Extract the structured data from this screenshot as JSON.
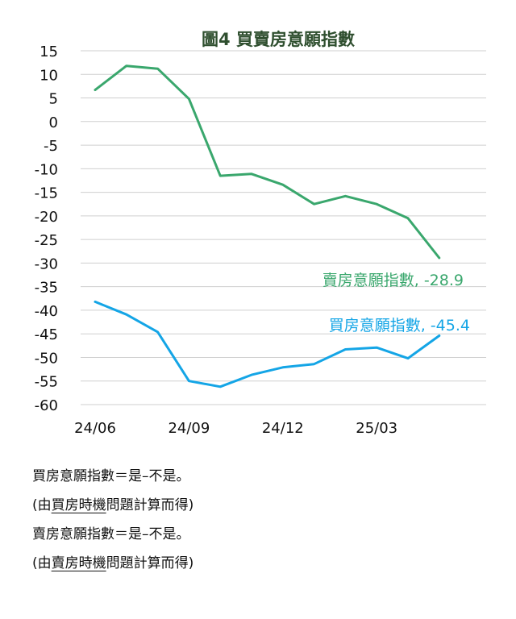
{
  "chart_data": {
    "type": "line",
    "title": "圖4  買賣房意願指數",
    "xlabel": "",
    "ylabel": "",
    "ylim": [
      -60,
      15
    ],
    "yticks": [
      15,
      10,
      5,
      0,
      -5,
      -10,
      -15,
      -20,
      -25,
      -30,
      -35,
      -40,
      -45,
      -50,
      -55,
      -60
    ],
    "x": [
      "24/06",
      "24/07",
      "24/08",
      "24/09",
      "24/10",
      "24/11",
      "24/12",
      "25/01",
      "25/02",
      "25/03",
      "25/04",
      "25/05"
    ],
    "xtick_labels": [
      "24/06",
      "24/09",
      "24/12",
      "25/03"
    ],
    "grid": true,
    "legend": "none",
    "series": [
      {
        "name": "賣房意願指數",
        "color": "#3aa76d",
        "values": [
          6.7,
          11.8,
          11.2,
          4.8,
          -11.5,
          -11.1,
          -13.4,
          -17.5,
          -15.8,
          -17.5,
          -20.5,
          -28.9
        ],
        "end_label": "賣房意願指數, -28.9"
      },
      {
        "name": "買房意願指數",
        "color": "#14a5e6",
        "values": [
          -38.2,
          -40.9,
          -44.6,
          -55.0,
          -56.2,
          -53.7,
          -52.1,
          -51.4,
          -48.3,
          -47.9,
          -50.2,
          -45.4
        ],
        "end_label": "買房意願指數, -45.4"
      }
    ]
  },
  "notes": {
    "buy_formula": "買房意願指數＝是–不是。",
    "buy_source_prefix": "(由",
    "buy_source_underlined": "買房時機",
    "buy_source_suffix": "問題計算而得)",
    "sell_formula": "賣房意願指數＝是–不是。",
    "sell_source_prefix": "(由",
    "sell_source_underlined": "賣房時機",
    "sell_source_suffix": "問題計算而得)"
  }
}
